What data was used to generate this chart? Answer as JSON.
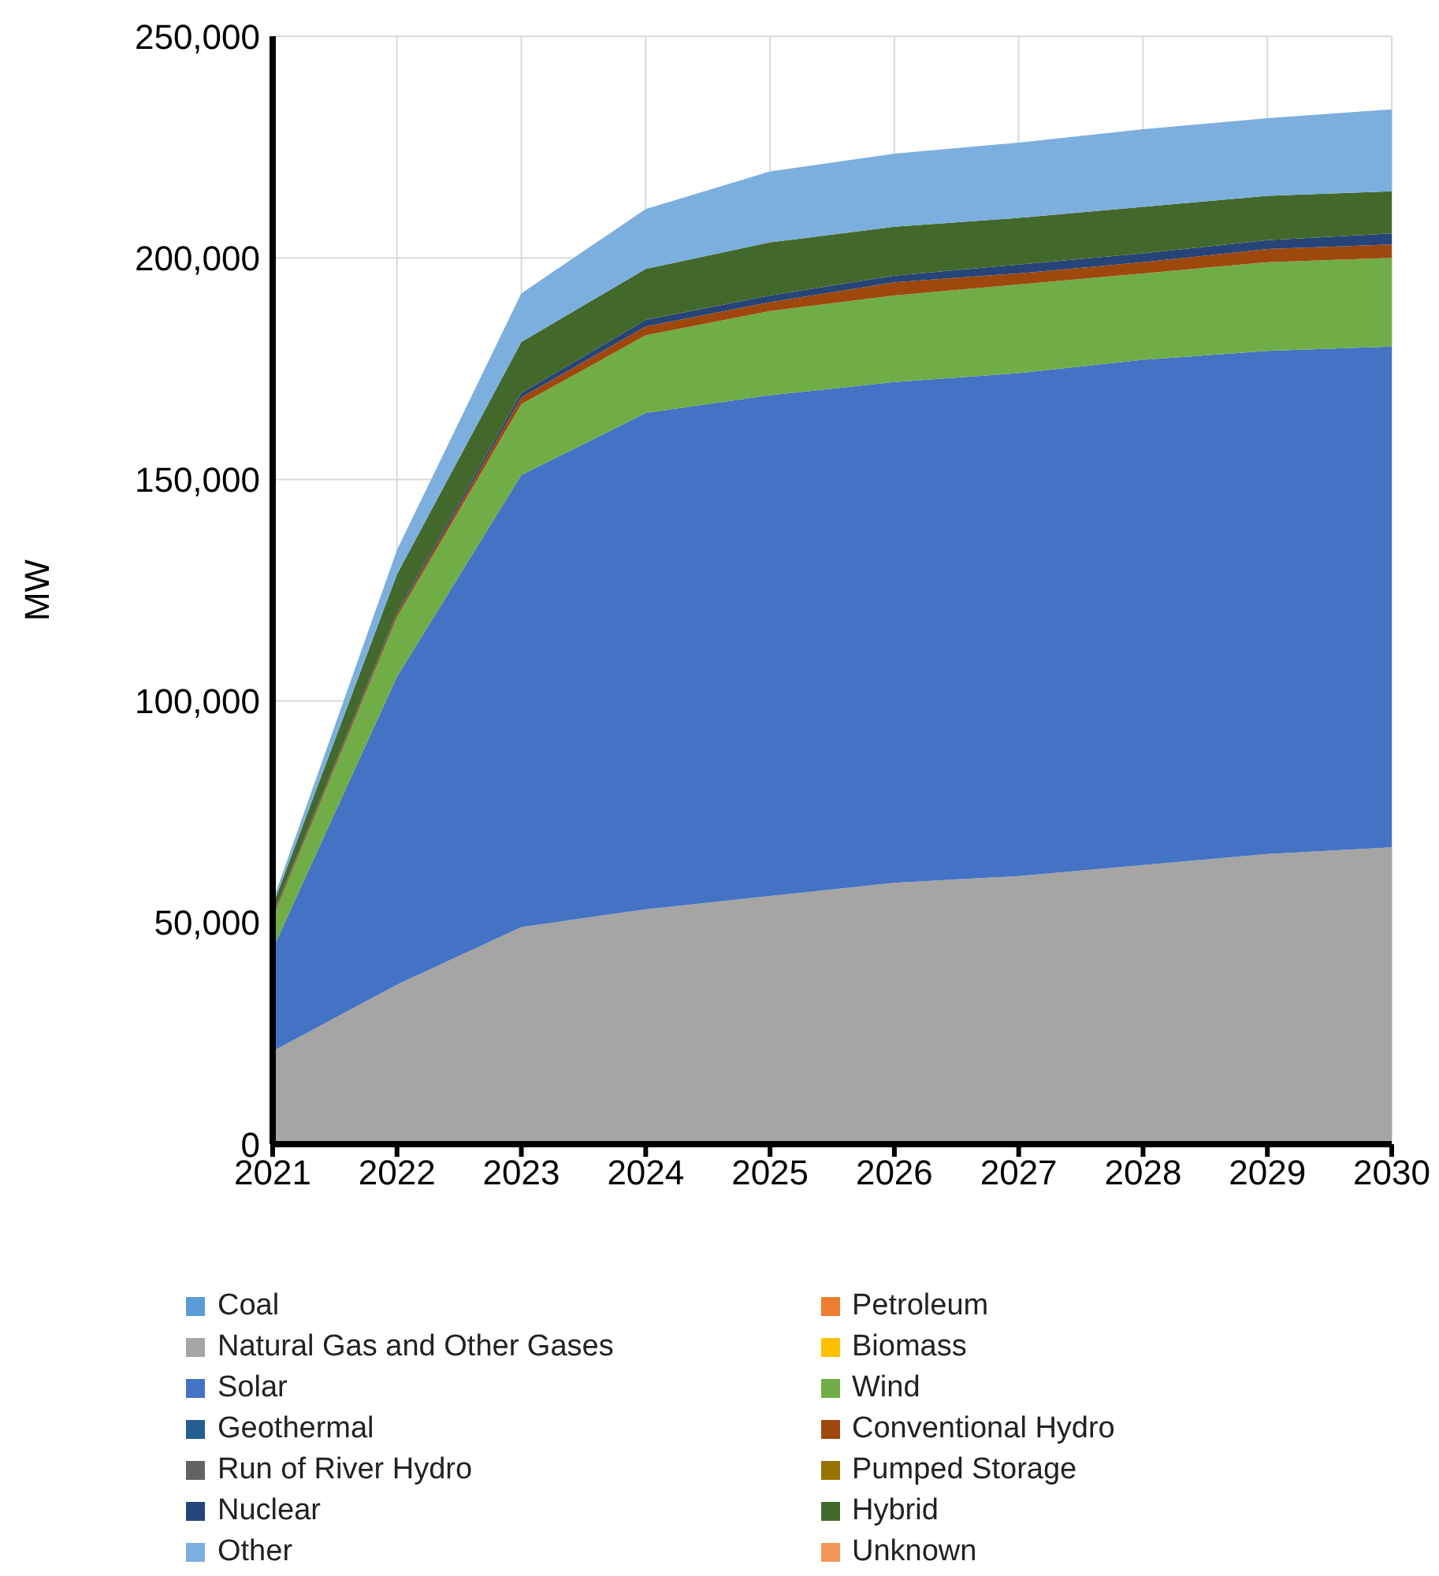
{
  "chart_data": {
    "type": "area",
    "stacked": true,
    "ylabel": "MW",
    "categories": [
      "2021",
      "2022",
      "2023",
      "2024",
      "2025",
      "2026",
      "2027",
      "2028",
      "2029",
      "2030"
    ],
    "ylim": [
      0,
      250000
    ],
    "yticks": [
      {
        "value": 0,
        "label": "0"
      },
      {
        "value": 50000,
        "label": "50,000"
      },
      {
        "value": 100000,
        "label": "100,000"
      },
      {
        "value": 150000,
        "label": "150,000"
      },
      {
        "value": 200000,
        "label": "200,000"
      },
      {
        "value": 250000,
        "label": "250,000"
      }
    ],
    "grid": true,
    "legend": "bottom",
    "series": [
      {
        "name": "Coal",
        "color": "#5b9bd5",
        "values": [
          null,
          null,
          null,
          null,
          null,
          null,
          null,
          null,
          null,
          null
        ]
      },
      {
        "name": "Petroleum",
        "color": "#ed7d31",
        "values": [
          null,
          null,
          null,
          null,
          null,
          null,
          null,
          null,
          null,
          null
        ]
      },
      {
        "name": "Natural Gas and Other Gases",
        "color": "#a5a5a5",
        "values": [
          21000,
          36000,
          49000,
          53000,
          56000,
          59000,
          60500,
          63000,
          65500,
          67000
        ]
      },
      {
        "name": "Biomass",
        "color": "#ffc000",
        "values": [
          null,
          null,
          null,
          null,
          null,
          null,
          null,
          null,
          null,
          null
        ]
      },
      {
        "name": "Solar",
        "color": "#4472c4",
        "values": [
          23000,
          69500,
          102000,
          112000,
          113000,
          113000,
          113500,
          114000,
          113500,
          113000
        ]
      },
      {
        "name": "Wind",
        "color": "#70ad47",
        "values": [
          7000,
          13500,
          16000,
          17500,
          19000,
          19500,
          20000,
          19500,
          20000,
          20000
        ]
      },
      {
        "name": "Geothermal",
        "color": "#255e91",
        "values": [
          null,
          null,
          null,
          null,
          null,
          null,
          null,
          null,
          null,
          null
        ]
      },
      {
        "name": "Conventional Hydro",
        "color": "#9e480e",
        "values": [
          500,
          700,
          1500,
          2000,
          2000,
          3000,
          2500,
          2500,
          3000,
          3000
        ]
      },
      {
        "name": "Run of River Hydro",
        "color": "#636363",
        "values": [
          null,
          null,
          null,
          null,
          null,
          null,
          null,
          null,
          null,
          null
        ]
      },
      {
        "name": "Pumped Storage",
        "color": "#997300",
        "values": [
          null,
          null,
          null,
          null,
          null,
          null,
          null,
          null,
          null,
          null
        ]
      },
      {
        "name": "Nuclear",
        "color": "#264478",
        "values": [
          300,
          400,
          1000,
          1500,
          1500,
          1500,
          2000,
          2000,
          2000,
          2500
        ]
      },
      {
        "name": "Hybrid",
        "color": "#43682b",
        "values": [
          2000,
          8500,
          11500,
          11500,
          12000,
          11000,
          10500,
          10500,
          10000,
          9500
        ]
      },
      {
        "name": "Other",
        "color": "#7cafdd",
        "values": [
          1000,
          5500,
          11000,
          13500,
          16000,
          16500,
          17000,
          17500,
          17500,
          18500
        ]
      },
      {
        "name": "Unknown",
        "color": "#f1975a",
        "values": [
          null,
          null,
          null,
          null,
          null,
          null,
          null,
          null,
          null,
          null
        ]
      }
    ]
  }
}
